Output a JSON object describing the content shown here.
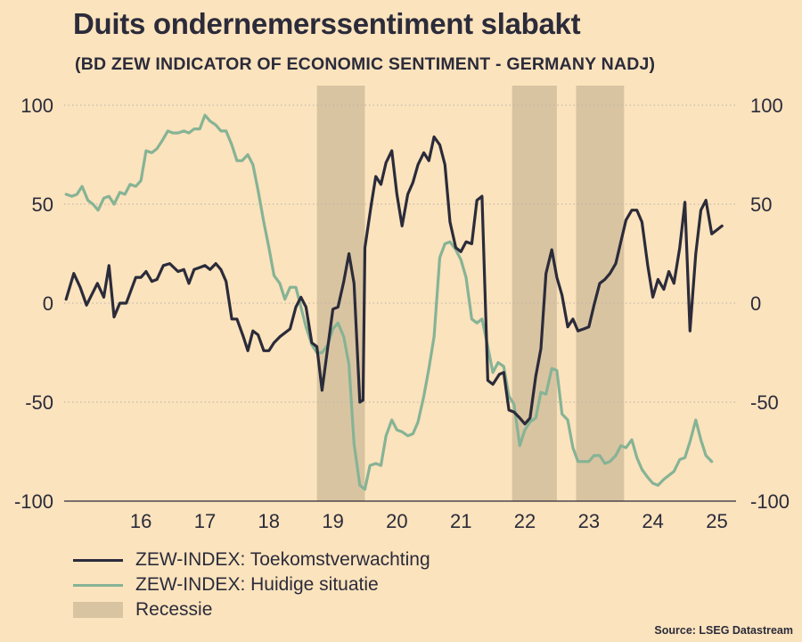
{
  "title": "Duits ondernemerssentiment slabakt",
  "subtitle": "(BD ZEW INDICATOR OF ECONOMIC SENTIMENT - GERMANY NADJ)",
  "source": "Source: LSEG Datastream",
  "colors": {
    "background": "#fbe3bd",
    "expectations": "#2b2b3a",
    "current": "#86b395",
    "recession": "#d9c4a1",
    "grid": "#b9b2a6"
  },
  "legend": {
    "expectations": "ZEW-INDEX: Toekomstverwachting",
    "current": "ZEW-INDEX: Huidige situatie",
    "recession": "Recessie"
  },
  "chart_data": {
    "type": "line",
    "title": "Duits ondernemerssentiment slabakt",
    "subtitle": "(BD ZEW INDICATOR OF ECONOMIC SENTIMENT - GERMANY NADJ)",
    "xlabel": "",
    "ylabel": "",
    "ylim": [
      -100,
      100
    ],
    "xlim": [
      2015.3,
      2025.8
    ],
    "yticks": [
      100,
      50,
      0,
      -50,
      -100
    ],
    "xticks": [
      {
        "value": 2016,
        "label": "16"
      },
      {
        "value": 2017,
        "label": "17"
      },
      {
        "value": 2018,
        "label": "18"
      },
      {
        "value": 2019,
        "label": "19"
      },
      {
        "value": 2020,
        "label": "20"
      },
      {
        "value": 2021,
        "label": "21"
      },
      {
        "value": 2022,
        "label": "22"
      },
      {
        "value": 2023,
        "label": "23"
      },
      {
        "value": 2024,
        "label": "24"
      },
      {
        "value": 2025,
        "label": "25"
      }
    ],
    "grid": true,
    "dual_axis": true,
    "recessions": [
      [
        2019.25,
        2020.0
      ],
      [
        2022.3,
        2023.0
      ],
      [
        2023.3,
        2024.05
      ]
    ],
    "series": [
      {
        "name": "ZEW-INDEX: Toekomstverwachting",
        "key": "expectations",
        "points": [
          [
            2015.33,
            2
          ],
          [
            2015.45,
            15
          ],
          [
            2015.55,
            8
          ],
          [
            2015.65,
            -1
          ],
          [
            2015.82,
            10
          ],
          [
            2015.92,
            3
          ],
          [
            2016.0,
            19
          ],
          [
            2016.08,
            -7
          ],
          [
            2016.17,
            0
          ],
          [
            2016.27,
            0
          ],
          [
            2016.42,
            13
          ],
          [
            2016.5,
            13
          ],
          [
            2016.58,
            16
          ],
          [
            2016.67,
            11
          ],
          [
            2016.75,
            12
          ],
          [
            2016.85,
            19
          ],
          [
            2016.95,
            20
          ],
          [
            2017.08,
            16
          ],
          [
            2017.17,
            17
          ],
          [
            2017.25,
            10
          ],
          [
            2017.33,
            17
          ],
          [
            2017.42,
            18
          ],
          [
            2017.5,
            19
          ],
          [
            2017.58,
            17
          ],
          [
            2017.67,
            20
          ],
          [
            2017.75,
            17
          ],
          [
            2017.83,
            11
          ],
          [
            2017.92,
            -8
          ],
          [
            2018.0,
            -8
          ],
          [
            2018.1,
            -17
          ],
          [
            2018.17,
            -24
          ],
          [
            2018.25,
            -14
          ],
          [
            2018.33,
            -16
          ],
          [
            2018.42,
            -24
          ],
          [
            2018.5,
            -24
          ],
          [
            2018.58,
            -20
          ],
          [
            2018.67,
            -17
          ],
          [
            2018.83,
            -13
          ],
          [
            2018.92,
            -2
          ],
          [
            2019.0,
            3
          ],
          [
            2019.08,
            -2
          ],
          [
            2019.17,
            -20
          ],
          [
            2019.25,
            -22
          ],
          [
            2019.33,
            -44
          ],
          [
            2019.42,
            -22
          ],
          [
            2019.5,
            -3
          ],
          [
            2019.58,
            -2
          ],
          [
            2019.67,
            11
          ],
          [
            2019.75,
            25
          ],
          [
            2019.83,
            10
          ],
          [
            2019.92,
            -50
          ],
          [
            2019.97,
            -49
          ],
          [
            2020.0,
            28
          ],
          [
            2020.1,
            50
          ],
          [
            2020.17,
            64
          ],
          [
            2020.25,
            60
          ],
          [
            2020.33,
            71
          ],
          [
            2020.42,
            77
          ],
          [
            2020.5,
            55
          ],
          [
            2020.58,
            39
          ],
          [
            2020.67,
            55
          ],
          [
            2020.75,
            61
          ],
          [
            2020.83,
            70
          ],
          [
            2020.92,
            76
          ],
          [
            2021.0,
            72
          ],
          [
            2021.08,
            84
          ],
          [
            2021.17,
            80
          ],
          [
            2021.25,
            70
          ],
          [
            2021.33,
            41
          ],
          [
            2021.42,
            28
          ],
          [
            2021.5,
            26
          ],
          [
            2021.58,
            31
          ],
          [
            2021.67,
            30
          ],
          [
            2021.75,
            52
          ],
          [
            2021.83,
            54
          ],
          [
            2021.92,
            -39
          ],
          [
            2022.0,
            -41
          ],
          [
            2022.1,
            -36
          ],
          [
            2022.17,
            -35
          ],
          [
            2022.25,
            -54
          ],
          [
            2022.33,
            -55
          ],
          [
            2022.42,
            -58
          ],
          [
            2022.5,
            -61
          ],
          [
            2022.58,
            -58
          ],
          [
            2022.67,
            -37
          ],
          [
            2022.75,
            -23
          ],
          [
            2022.83,
            15
          ],
          [
            2022.92,
            27
          ],
          [
            2023.0,
            13
          ],
          [
            2023.08,
            4
          ],
          [
            2023.17,
            -12
          ],
          [
            2023.25,
            -8
          ],
          [
            2023.33,
            -14
          ],
          [
            2023.42,
            -13
          ],
          [
            2023.5,
            -12
          ],
          [
            2023.58,
            -1
          ],
          [
            2023.67,
            10
          ],
          [
            2023.75,
            12
          ],
          [
            2023.83,
            15
          ],
          [
            2023.92,
            20
          ],
          [
            2024.0,
            31
          ],
          [
            2024.08,
            42
          ],
          [
            2024.17,
            47
          ],
          [
            2024.25,
            47
          ],
          [
            2024.33,
            41
          ],
          [
            2024.42,
            19
          ],
          [
            2024.5,
            3
          ],
          [
            2024.58,
            12
          ],
          [
            2024.67,
            7
          ],
          [
            2024.75,
            16
          ],
          [
            2024.83,
            10
          ],
          [
            2024.92,
            28
          ],
          [
            2025.0,
            51
          ],
          [
            2025.08,
            -14
          ],
          [
            2025.17,
            25
          ],
          [
            2025.25,
            47
          ],
          [
            2025.33,
            52
          ],
          [
            2025.42,
            35
          ],
          [
            2025.5,
            37
          ],
          [
            2025.58,
            39
          ]
        ]
      },
      {
        "name": "ZEW-INDEX: Huidige situatie",
        "key": "current",
        "points": [
          [
            2015.33,
            55
          ],
          [
            2015.42,
            54
          ],
          [
            2015.5,
            55
          ],
          [
            2015.58,
            59
          ],
          [
            2015.67,
            52
          ],
          [
            2015.75,
            50
          ],
          [
            2015.83,
            47
          ],
          [
            2015.92,
            53
          ],
          [
            2016.0,
            54
          ],
          [
            2016.08,
            50
          ],
          [
            2016.17,
            56
          ],
          [
            2016.25,
            55
          ],
          [
            2016.33,
            60
          ],
          [
            2016.42,
            59
          ],
          [
            2016.5,
            62
          ],
          [
            2016.58,
            77
          ],
          [
            2016.67,
            76
          ],
          [
            2016.75,
            78
          ],
          [
            2016.83,
            82
          ],
          [
            2016.92,
            87
          ],
          [
            2017.0,
            86
          ],
          [
            2017.08,
            86
          ],
          [
            2017.17,
            87
          ],
          [
            2017.25,
            86
          ],
          [
            2017.33,
            88
          ],
          [
            2017.42,
            88
          ],
          [
            2017.5,
            95
          ],
          [
            2017.58,
            92
          ],
          [
            2017.67,
            90
          ],
          [
            2017.75,
            87
          ],
          [
            2017.83,
            87
          ],
          [
            2017.92,
            80
          ],
          [
            2018.0,
            72
          ],
          [
            2018.08,
            72
          ],
          [
            2018.17,
            75
          ],
          [
            2018.25,
            70
          ],
          [
            2018.33,
            57
          ],
          [
            2018.42,
            41
          ],
          [
            2018.5,
            28
          ],
          [
            2018.58,
            14
          ],
          [
            2018.67,
            10
          ],
          [
            2018.75,
            2
          ],
          [
            2018.83,
            8
          ],
          [
            2018.92,
            8
          ],
          [
            2019.0,
            -2
          ],
          [
            2019.08,
            -12
          ],
          [
            2019.17,
            -21
          ],
          [
            2019.25,
            -25
          ],
          [
            2019.33,
            -25
          ],
          [
            2019.42,
            -21
          ],
          [
            2019.5,
            -13
          ],
          [
            2019.58,
            -10
          ],
          [
            2019.67,
            -17
          ],
          [
            2019.75,
            -31
          ],
          [
            2019.83,
            -71
          ],
          [
            2019.92,
            -92
          ],
          [
            2020.0,
            -94
          ],
          [
            2020.08,
            -82
          ],
          [
            2020.17,
            -81
          ],
          [
            2020.25,
            -82
          ],
          [
            2020.33,
            -67
          ],
          [
            2020.42,
            -59
          ],
          [
            2020.5,
            -64
          ],
          [
            2020.58,
            -65
          ],
          [
            2020.67,
            -67
          ],
          [
            2020.75,
            -66
          ],
          [
            2020.83,
            -60
          ],
          [
            2020.92,
            -47
          ],
          [
            2021.0,
            -33
          ],
          [
            2021.08,
            -17
          ],
          [
            2021.17,
            23
          ],
          [
            2021.25,
            30
          ],
          [
            2021.33,
            31
          ],
          [
            2021.42,
            27
          ],
          [
            2021.5,
            22
          ],
          [
            2021.58,
            13
          ],
          [
            2021.67,
            -8
          ],
          [
            2021.75,
            -10
          ],
          [
            2021.83,
            -8
          ],
          [
            2021.92,
            -22
          ],
          [
            2022.0,
            -35
          ],
          [
            2022.08,
            -30
          ],
          [
            2022.17,
            -32
          ],
          [
            2022.25,
            -47
          ],
          [
            2022.33,
            -51
          ],
          [
            2022.42,
            -72
          ],
          [
            2022.5,
            -64
          ],
          [
            2022.58,
            -60
          ],
          [
            2022.67,
            -58
          ],
          [
            2022.75,
            -45
          ],
          [
            2022.83,
            -46
          ],
          [
            2022.92,
            -33
          ],
          [
            2023.0,
            -34
          ],
          [
            2023.08,
            -56
          ],
          [
            2023.17,
            -59
          ],
          [
            2023.25,
            -73
          ],
          [
            2023.33,
            -80
          ],
          [
            2023.42,
            -80
          ],
          [
            2023.5,
            -80
          ],
          [
            2023.58,
            -77
          ],
          [
            2023.67,
            -77
          ],
          [
            2023.75,
            -81
          ],
          [
            2023.83,
            -80
          ],
          [
            2023.92,
            -77
          ],
          [
            2024.0,
            -72
          ],
          [
            2024.08,
            -73
          ],
          [
            2024.17,
            -69
          ],
          [
            2024.25,
            -78
          ],
          [
            2024.33,
            -84
          ],
          [
            2024.42,
            -88
          ],
          [
            2024.5,
            -91
          ],
          [
            2024.58,
            -92
          ],
          [
            2024.67,
            -89
          ],
          [
            2024.75,
            -87
          ],
          [
            2024.83,
            -85
          ],
          [
            2024.92,
            -79
          ],
          [
            2025.0,
            -78
          ],
          [
            2025.08,
            -70
          ],
          [
            2025.17,
            -59
          ],
          [
            2025.25,
            -69
          ],
          [
            2025.33,
            -77
          ],
          [
            2025.42,
            -80
          ]
        ]
      }
    ]
  }
}
